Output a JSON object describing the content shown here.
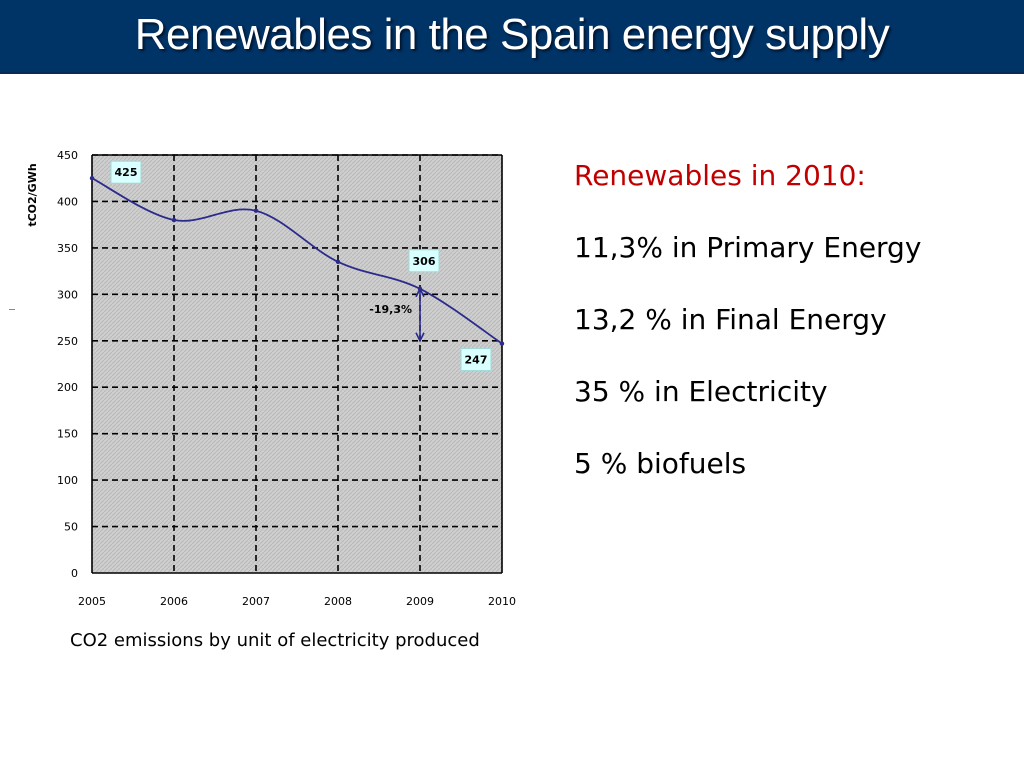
{
  "slide": {
    "title": "Renewables in the Spain energy supply",
    "caption": "CO2 emissions by unit of electricity produced",
    "side_heading": "Renewables in 2010:",
    "side_items": [
      "11,3% in Primary Energy",
      "13,2 % in Final Energy",
      "35 % in Electricity",
      "5 % biofuels"
    ]
  },
  "colors": {
    "title_bar": "#003366",
    "heading_red": "#c00000",
    "line": "#2b2b8c",
    "plot_bg": "#c8c8c8",
    "label_box": "#d9ffff"
  },
  "chart_data": {
    "type": "line",
    "title": "",
    "xlabel": "",
    "ylabel": "tCO2/GWh",
    "x": [
      2005,
      2006,
      2007,
      2008,
      2009,
      2010
    ],
    "categories": [
      "2005",
      "2006",
      "2007",
      "2008",
      "2009",
      "2010"
    ],
    "values": [
      425,
      380,
      390,
      335,
      306,
      247
    ],
    "ylim": [
      0,
      450
    ],
    "yticks": [
      0,
      50,
      100,
      150,
      200,
      250,
      300,
      350,
      400,
      450
    ],
    "grid": true,
    "legend": "none",
    "annotations": [
      {
        "text": "425",
        "x": "2005",
        "y": 425
      },
      {
        "text": "306",
        "x": "2009",
        "y": 306
      },
      {
        "text": "247",
        "x": "2010",
        "y": 247
      },
      {
        "text": "-19,3%",
        "x": "2009",
        "y_from": 306,
        "y_to": 250
      }
    ]
  }
}
